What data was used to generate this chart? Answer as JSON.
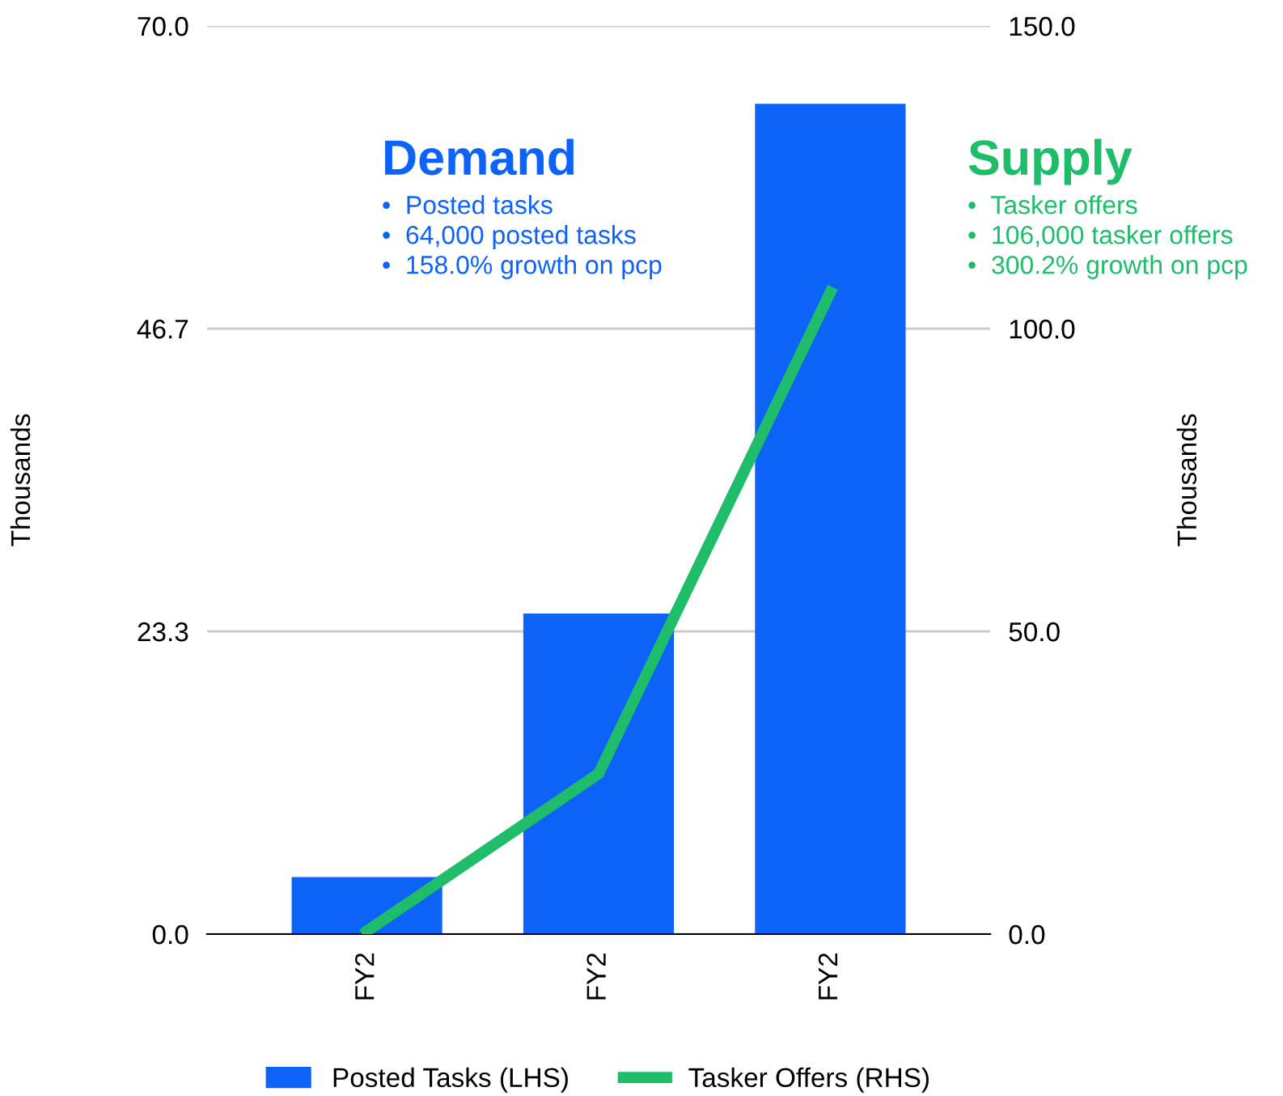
{
  "chart_data": {
    "type": "bar",
    "categories": [
      "FY2",
      "FY2",
      "FY2"
    ],
    "series": [
      {
        "name": "Posted Tasks (LHS)",
        "color": "#0d63f8",
        "values": [
          4.4,
          24.7,
          64.0
        ]
      },
      {
        "name": "Tasker Offers (RHS)",
        "type": "line",
        "axis": "y2",
        "color": "#1fbd6a",
        "values": [
          0.5,
          26.5,
          106.0
        ]
      }
    ],
    "ylabel": "Thousands",
    "y2label": "Thousands",
    "ylim": [
      0,
      70
    ],
    "yticks": [
      {
        "value": 0,
        "label": "0.0"
      },
      {
        "value": 23.333,
        "label": "23.3"
      },
      {
        "value": 46.667,
        "label": "46.7"
      },
      {
        "value": 70,
        "label": "70.0"
      }
    ],
    "y2lim": [
      0,
      150
    ],
    "y2ticks": [
      {
        "value": 0,
        "label": "0.0"
      },
      {
        "value": 50,
        "label": "50.0"
      },
      {
        "value": 100,
        "label": "100.0"
      },
      {
        "value": 150,
        "label": "150.0"
      }
    ],
    "grid": "y",
    "legend": "bottom",
    "marker": "none",
    "line_style": "solid",
    "annotations": [
      "Demand",
      "•  Posted tasks",
      "•  64,000 posted tasks",
      "•  158.0% growth on pcp",
      "Supply",
      "•  Tasker offers",
      "•  106,000 tasker offers",
      "•  300.2% growth on pcp"
    ]
  }
}
